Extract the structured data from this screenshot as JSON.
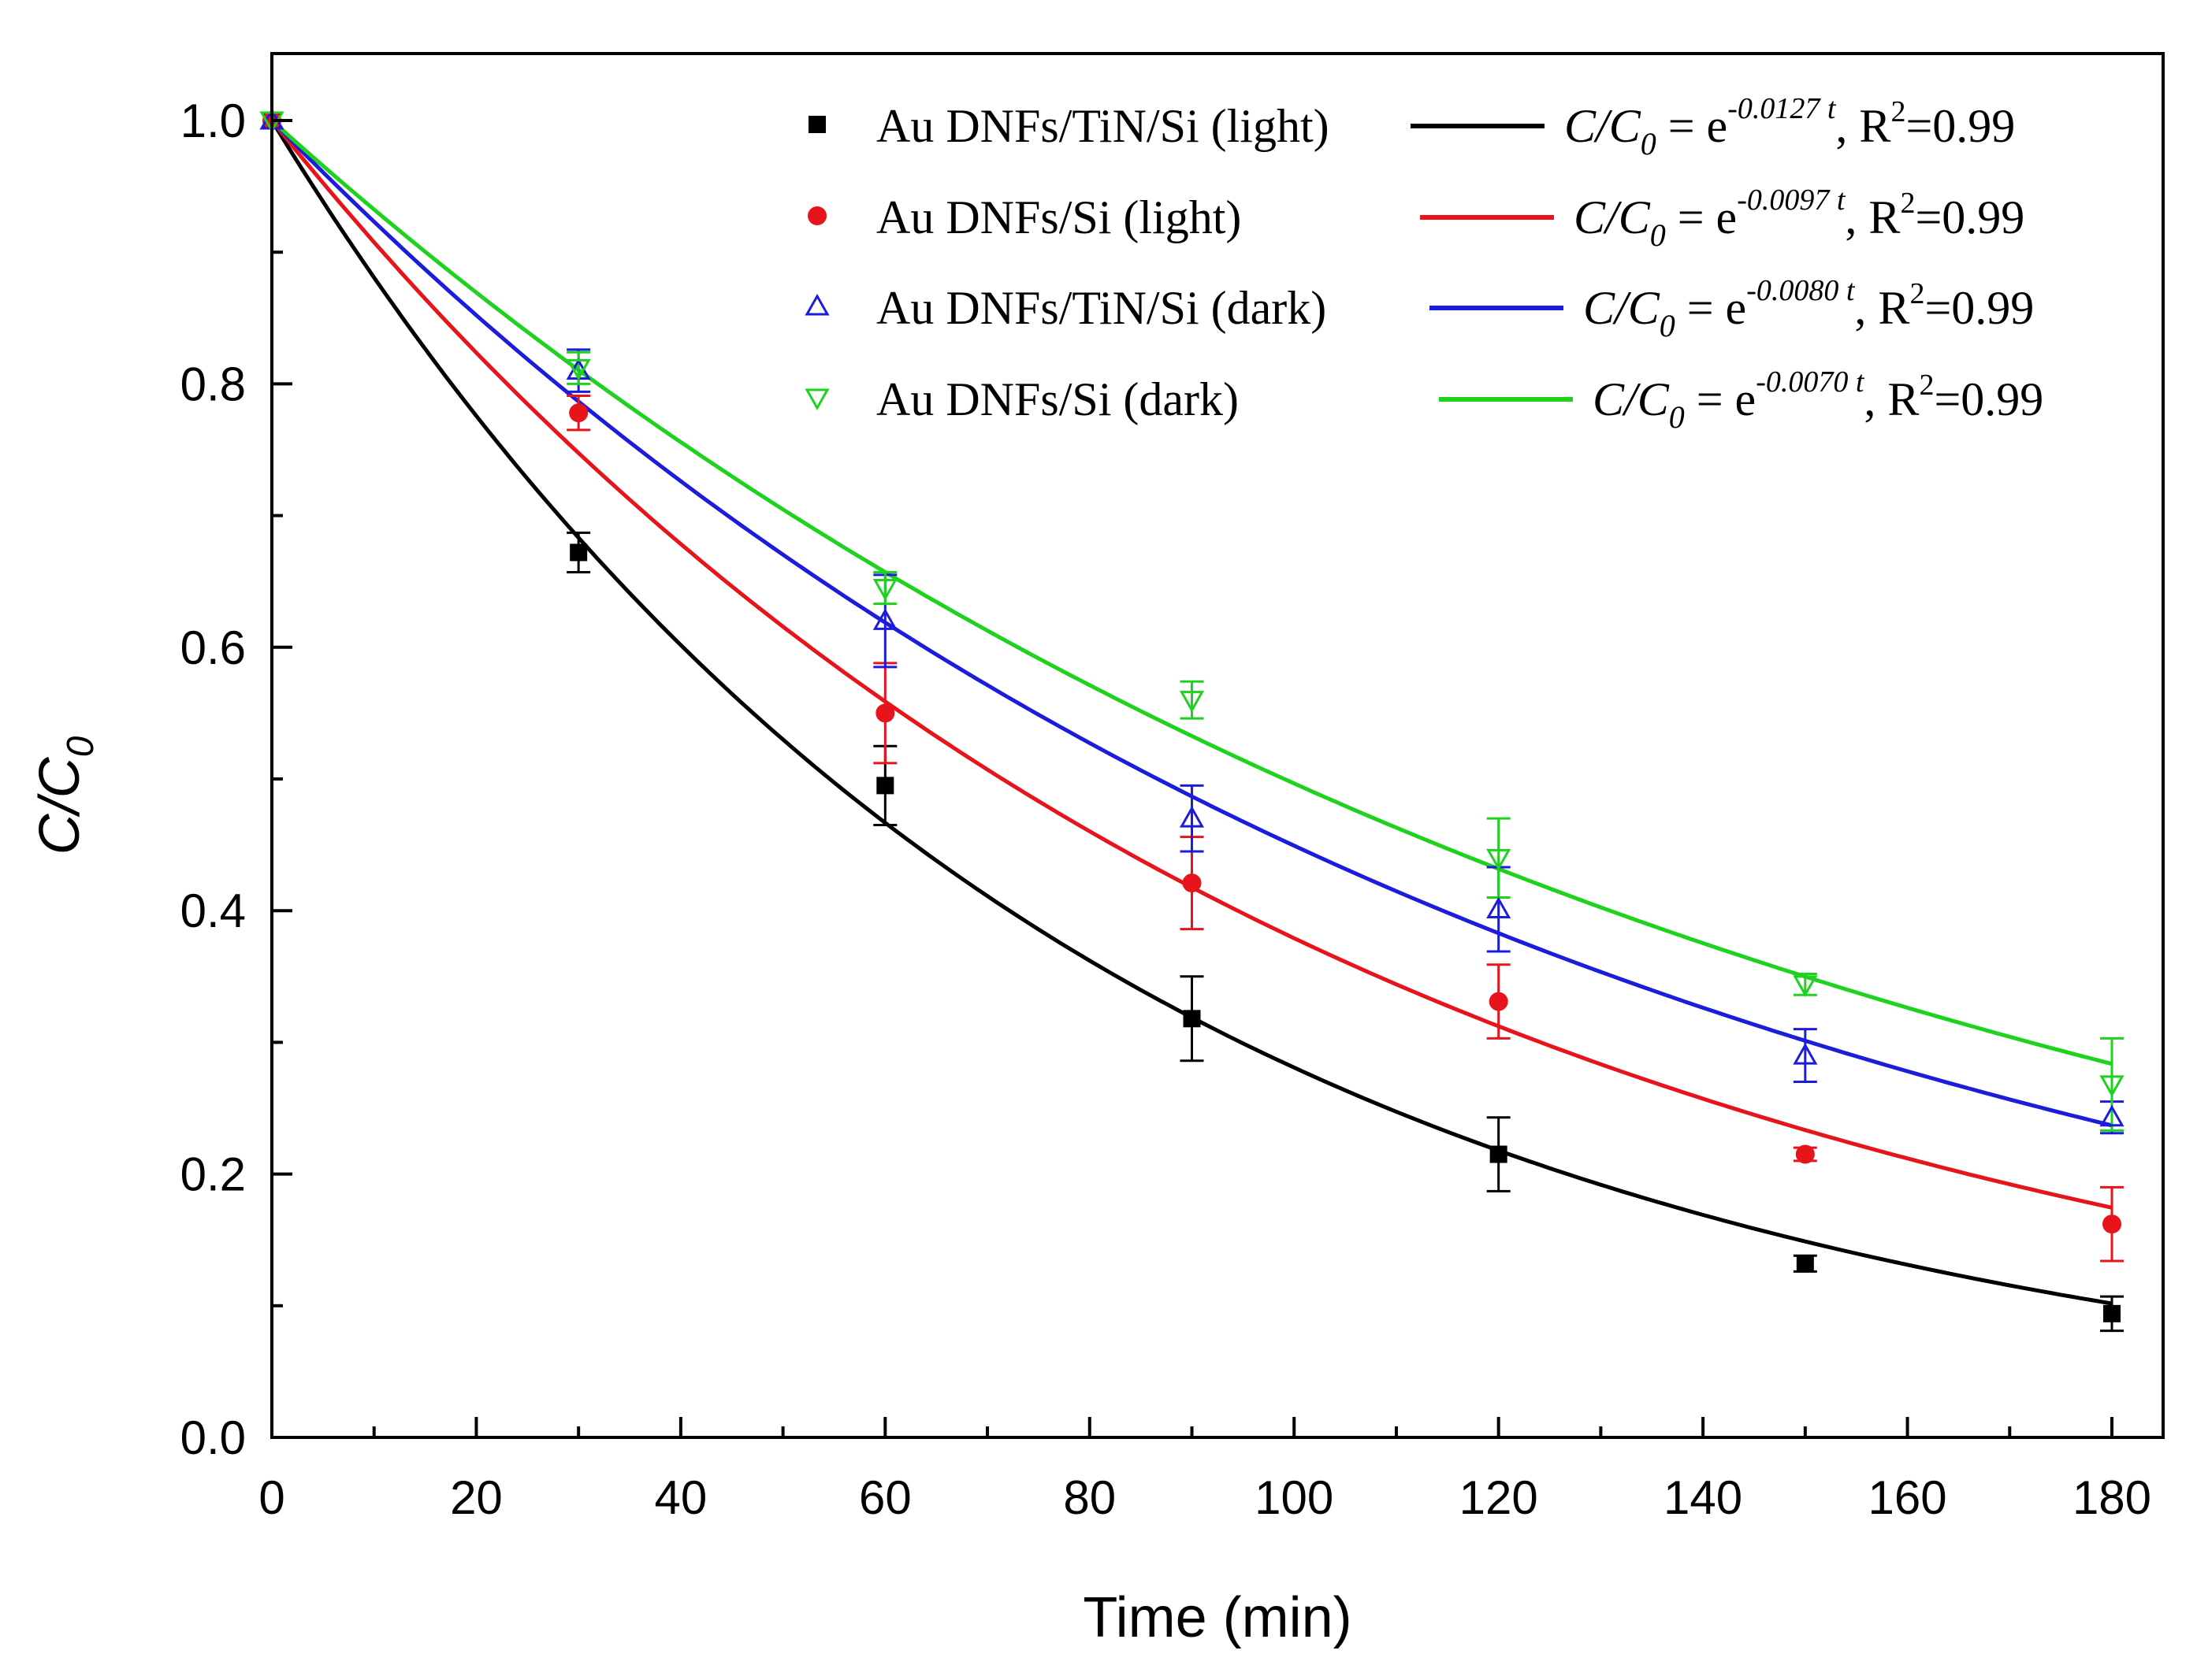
{
  "chart_data": {
    "type": "scatter",
    "xlabel": "Time (min)",
    "ylabel_main": "C/C",
    "ylabel_sub": "0",
    "xlim": [
      0,
      185
    ],
    "ylim": [
      0,
      1.05
    ],
    "x_ticks": [
      0,
      20,
      40,
      60,
      80,
      100,
      120,
      140,
      160,
      180
    ],
    "x_tick_labels": [
      "0",
      "20",
      "40",
      "60",
      "80",
      "100",
      "120",
      "140",
      "160",
      "180"
    ],
    "y_ticks": [
      0.0,
      0.2,
      0.4,
      0.6,
      0.8,
      1.0
    ],
    "y_tick_labels": [
      "0.0",
      "0.2",
      "0.4",
      "0.6",
      "0.8",
      "1.0"
    ],
    "x_minor_step": 10,
    "y_minor_step": 0.1,
    "legend_position": "top-right",
    "x": [
      0,
      30,
      60,
      90,
      120,
      150,
      180
    ],
    "series": [
      {
        "name": "Au DNFs/TiN/Si (light)",
        "marker": "square",
        "color": "#000000",
        "values": [
          1.0,
          0.672,
          0.495,
          0.318,
          0.215,
          0.132,
          0.094
        ],
        "errors": [
          0.0,
          0.015,
          0.03,
          0.032,
          0.028,
          0.006,
          0.013
        ],
        "k": 0.0127,
        "fit_eq": {
          "lhs_main": "C/C",
          "lhs_sub": "0",
          "eq": " = e",
          "exponent": "-0.0127 t",
          "r_base": ",  R",
          "r_sup": "2",
          "r_val": "=0.99"
        }
      },
      {
        "name": "Au DNFs/Si (light)",
        "marker": "circle",
        "color": "#e8141c",
        "values": [
          1.0,
          0.778,
          0.55,
          0.421,
          0.331,
          0.215,
          0.162
        ],
        "errors": [
          0.0,
          0.013,
          0.038,
          0.035,
          0.028,
          0.005,
          0.028
        ],
        "k": 0.0097,
        "fit_eq": {
          "lhs_main": "C/C",
          "lhs_sub": "0",
          "eq": " = e",
          "exponent": "-0.0097 t",
          "r_base": ",  R",
          "r_sup": "2",
          "r_val": "=0.99"
        }
      },
      {
        "name": "Au DNFs/TiN/Si (dark)",
        "marker": "triangle-up",
        "color": "#1c1cdc",
        "values": [
          1.0,
          0.81,
          0.62,
          0.47,
          0.401,
          0.29,
          0.243
        ],
        "errors": [
          0.0,
          0.016,
          0.035,
          0.025,
          0.032,
          0.02,
          0.012
        ],
        "k": 0.008,
        "fit_eq": {
          "lhs_main": "C/C",
          "lhs_sub": "0",
          "eq": " = e",
          "exponent": "-0.0080 t",
          "r_base": ",  R",
          "r_sup": "2",
          "r_val": "=0.99"
        }
      },
      {
        "name": "Au DNFs/Si (dark)",
        "marker": "triangle-down",
        "color": "#1ed21e",
        "values": [
          1.0,
          0.812,
          0.645,
          0.56,
          0.44,
          0.344,
          0.268
        ],
        "errors": [
          0.0,
          0.012,
          0.012,
          0.014,
          0.03,
          0.008,
          0.035
        ],
        "k": 0.007,
        "fit_eq": {
          "lhs_main": "C/C",
          "lhs_sub": "0",
          "eq": " = e",
          "exponent": "-0.0070 t",
          "r_base": ",  R",
          "r_sup": "2",
          "r_val": "=0.99"
        }
      }
    ]
  }
}
